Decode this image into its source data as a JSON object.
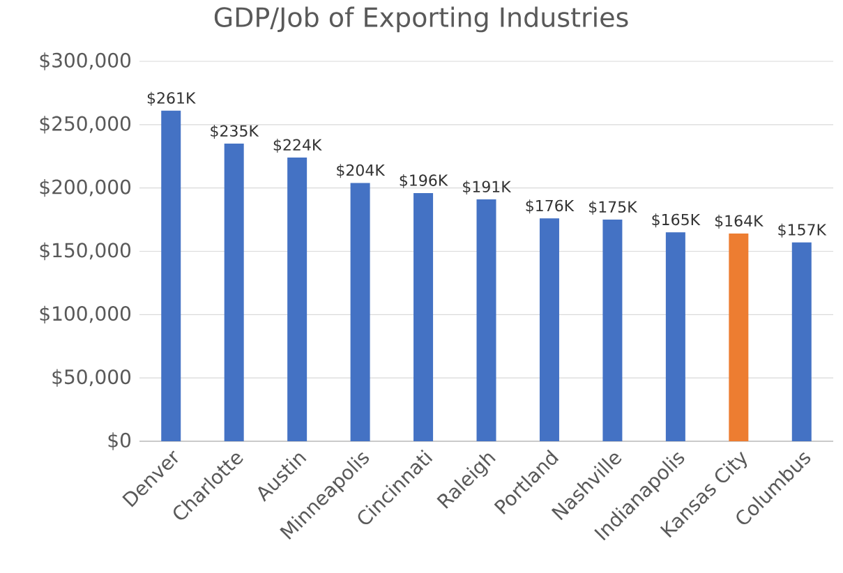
{
  "chart_data": {
    "type": "bar",
    "title": "GDP/Job of Exporting Industries",
    "categories": [
      "Denver",
      "Charlotte",
      "Austin",
      "Minneapolis",
      "Cincinnati",
      "Raleigh",
      "Portland",
      "Nashville",
      "Indianapolis",
      "Kansas City",
      "Columbus"
    ],
    "values": [
      261000,
      235000,
      224000,
      204000,
      196000,
      191000,
      176000,
      175000,
      165000,
      164000,
      157000
    ],
    "value_labels": [
      "$261K",
      "$235K",
      "$224K",
      "$204K",
      "$196K",
      "$191K",
      "$176K",
      "$175K",
      "$165K",
      "$164K",
      "$157K"
    ],
    "colors": [
      "#4472c4",
      "#4472c4",
      "#4472c4",
      "#4472c4",
      "#4472c4",
      "#4472c4",
      "#4472c4",
      "#4472c4",
      "#4472c4",
      "#ed7d31",
      "#4472c4"
    ],
    "ylim": [
      0,
      300000
    ],
    "yticks": [
      {
        "value": 0,
        "label": "$0"
      },
      {
        "value": 50000,
        "label": "$50,000"
      },
      {
        "value": 100000,
        "label": "$100,000"
      },
      {
        "value": 150000,
        "label": "$150,000"
      },
      {
        "value": 200000,
        "label": "$200,000"
      },
      {
        "value": 250000,
        "label": "$250,000"
      },
      {
        "value": 300000,
        "label": "$300,000"
      }
    ],
    "grid": "y"
  }
}
